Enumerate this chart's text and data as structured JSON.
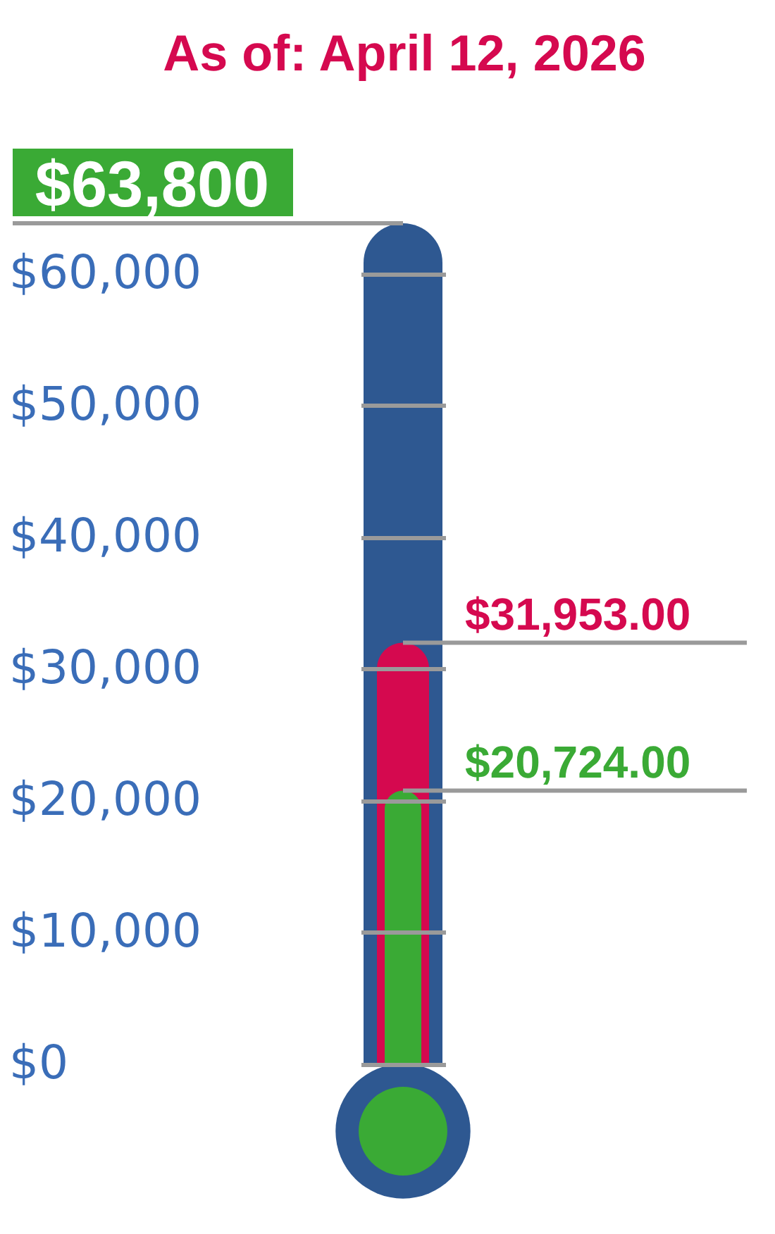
{
  "chart_data": {
    "type": "bar",
    "title": "As of: April 12, 2026",
    "categories": [
      null
    ],
    "series": [
      {
        "color": "#d5094f",
        "values": [
          31953
        ],
        "value_labels": [
          "$31,953.00"
        ]
      },
      {
        "color": "#3aaa35",
        "values": [
          20724
        ],
        "value_labels": [
          "$20,724.00"
        ]
      }
    ],
    "ref_lines": [
      {
        "axis": "y",
        "value": 63800,
        "label": "$63,800",
        "color": "#9a9a9a"
      }
    ],
    "ylim": [
      0,
      63800
    ],
    "yticks": [
      {
        "value": 0,
        "label": "$0"
      },
      {
        "value": 10000,
        "label": "$10,000"
      },
      {
        "value": 20000,
        "label": "$20,000"
      },
      {
        "value": 30000,
        "label": "$30,000"
      },
      {
        "value": 40000,
        "label": "$40,000"
      },
      {
        "value": 50000,
        "label": "$50,000"
      },
      {
        "value": 60000,
        "label": "$60,000"
      }
    ],
    "grid": "y",
    "tick_labels": "y"
  }
}
